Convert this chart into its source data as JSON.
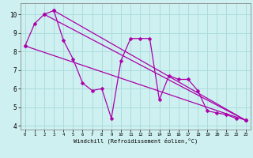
{
  "xlabel": "Windchill (Refroidissement éolien,°C)",
  "bg_color": "#cff0f0",
  "grid_color": "#aadddd",
  "line_color": "#aa00aa",
  "markersize": 2.5,
  "linewidth": 0.9,
  "xlim": [
    -0.5,
    23.5
  ],
  "ylim": [
    3.8,
    10.6
  ],
  "xticks": [
    0,
    1,
    2,
    3,
    4,
    5,
    6,
    7,
    8,
    9,
    10,
    11,
    12,
    13,
    14,
    15,
    16,
    17,
    18,
    19,
    20,
    21,
    22,
    23
  ],
  "yticks": [
    4,
    5,
    6,
    7,
    8,
    9,
    10
  ],
  "main_series_x": [
    0,
    1,
    2,
    3,
    4,
    5,
    6,
    7,
    8,
    9,
    10,
    11,
    12,
    13,
    14,
    15,
    16,
    17,
    18,
    19,
    20,
    21,
    22
  ],
  "main_series_y": [
    8.3,
    9.5,
    10.0,
    10.2,
    8.6,
    7.6,
    6.3,
    5.9,
    6.0,
    4.4,
    7.5,
    8.7,
    8.7,
    8.7,
    5.4,
    6.7,
    6.5,
    6.5,
    5.9,
    4.8,
    4.7,
    4.6,
    4.4
  ],
  "trend_lines": [
    {
      "x": [
        0,
        23
      ],
      "y": [
        8.3,
        4.3
      ]
    },
    {
      "x": [
        2,
        23
      ],
      "y": [
        10.0,
        4.3
      ]
    },
    {
      "x": [
        3,
        23
      ],
      "y": [
        10.2,
        4.3
      ]
    }
  ]
}
